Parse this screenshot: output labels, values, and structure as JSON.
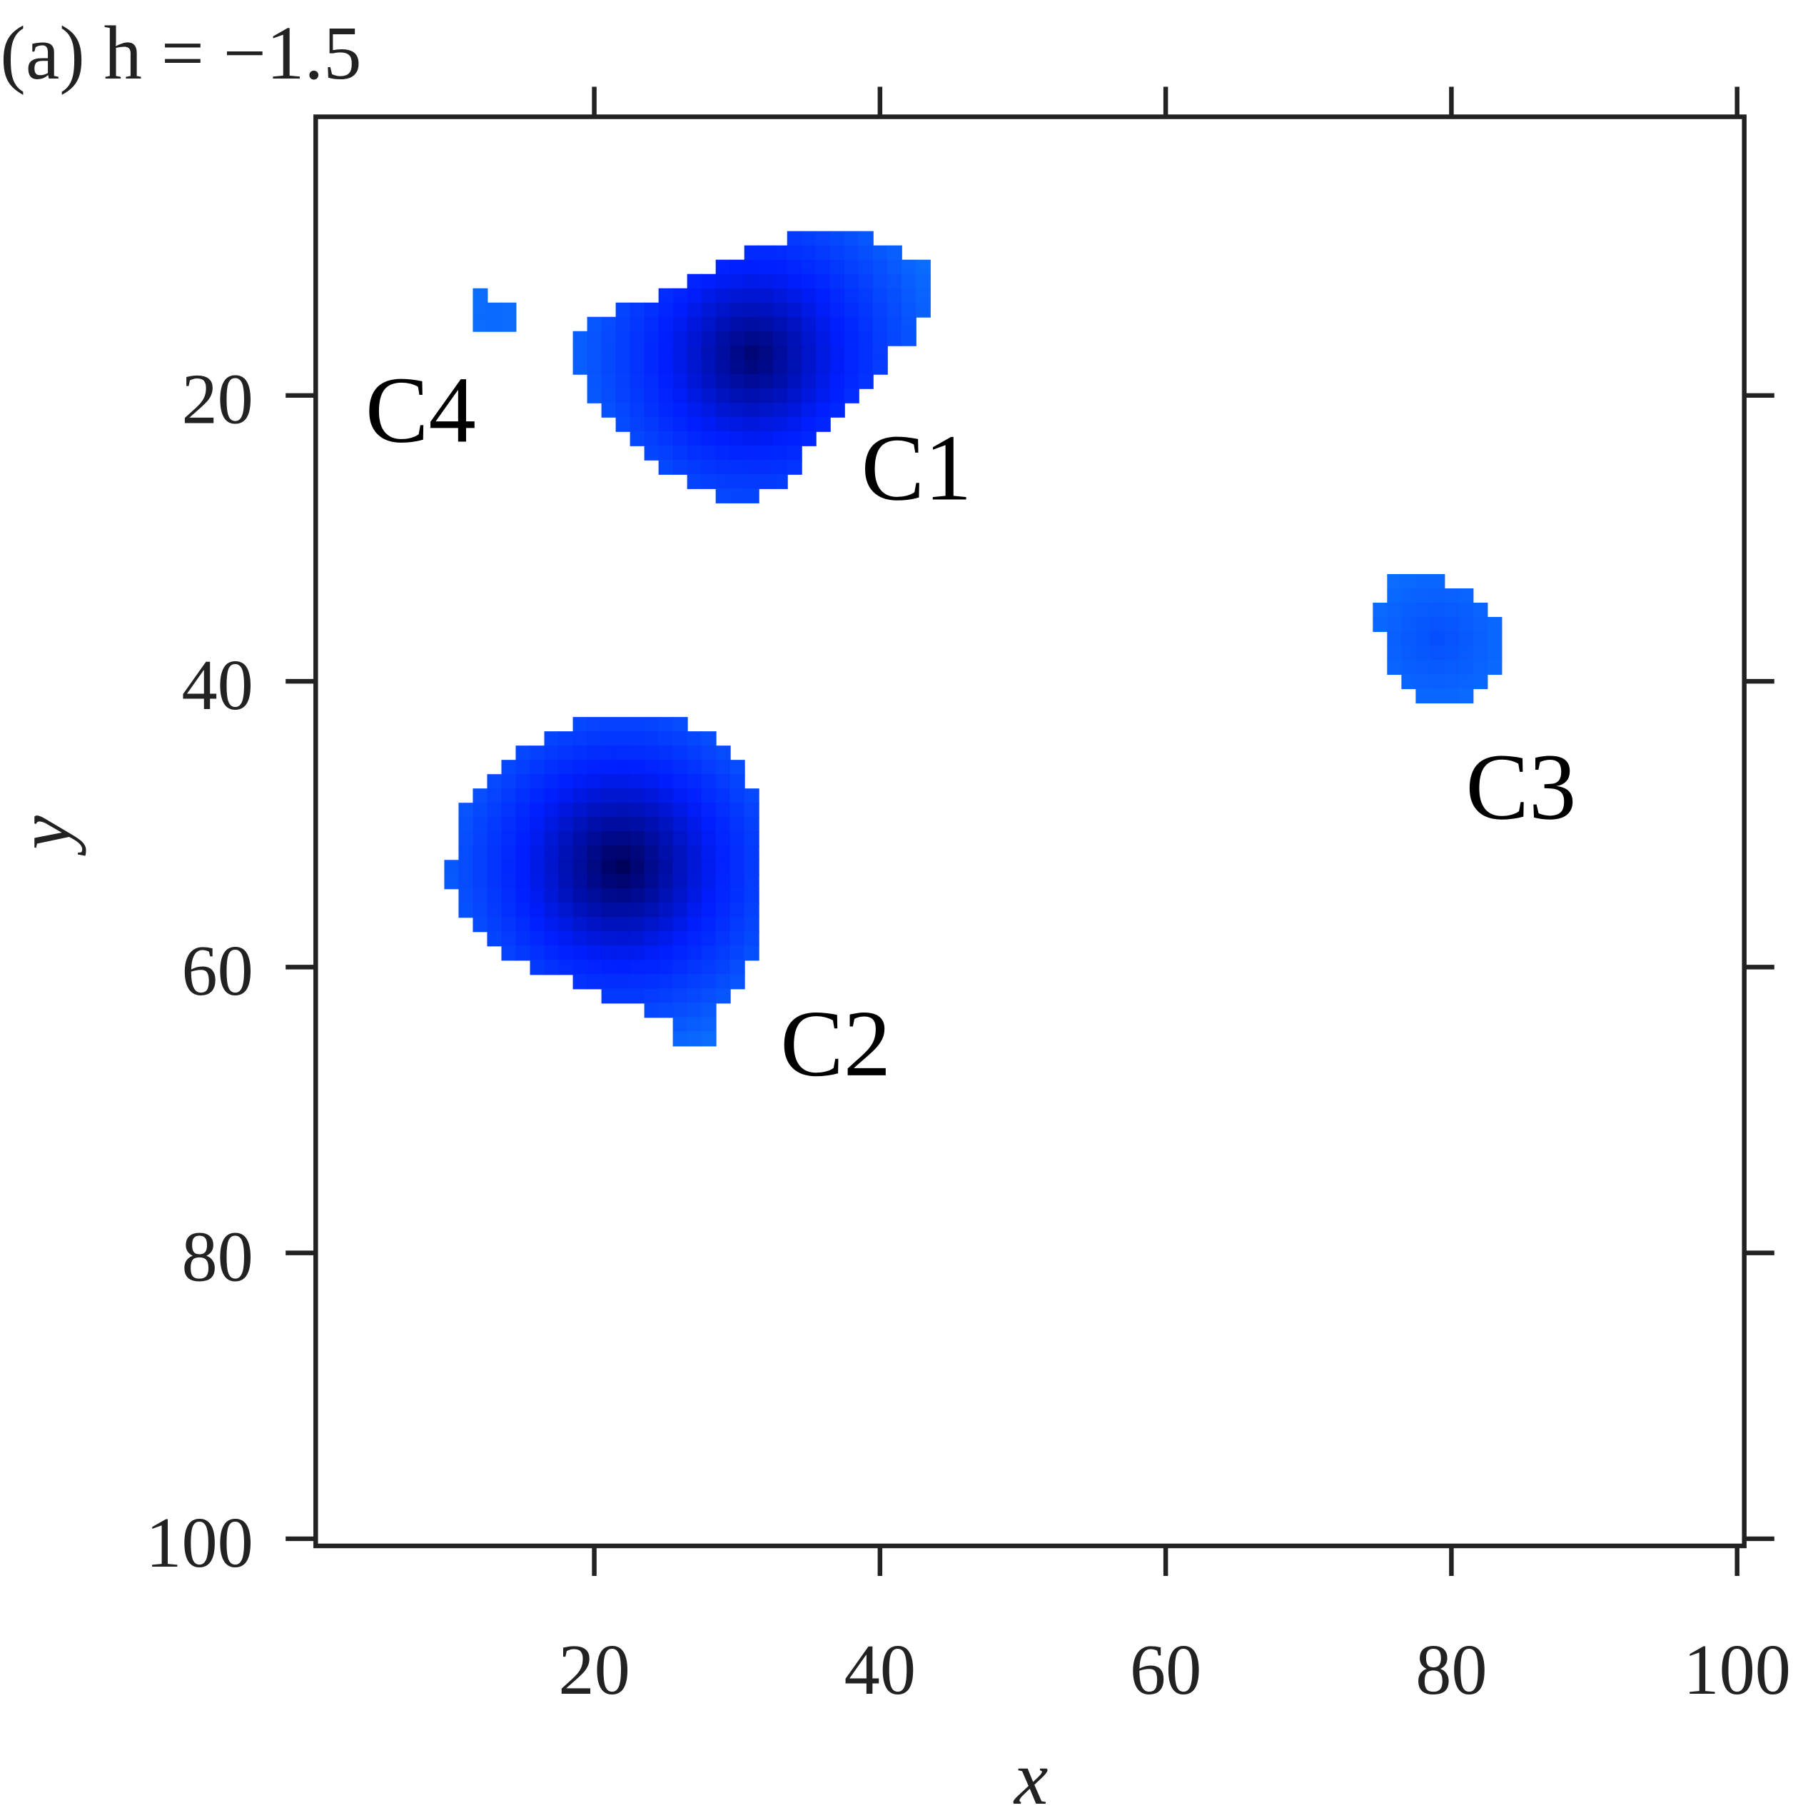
{
  "chart_data": {
    "type": "heatmap",
    "title": "(a) h = −1.5",
    "x_label": "x",
    "y_label": "y",
    "xlim": [
      0.5,
      100.5
    ],
    "ylim": [
      0.5,
      100.5
    ],
    "y_inverted": true,
    "xticks": [
      20,
      40,
      60,
      80,
      100
    ],
    "yticks": [
      20,
      40,
      60,
      80,
      100
    ],
    "clusters": [
      {
        "label": "C1",
        "rows": [
          [
            9,
            34,
            39
          ],
          [
            10,
            31,
            41
          ],
          [
            11,
            29,
            43
          ],
          [
            12,
            27,
            43
          ],
          [
            13,
            25,
            43
          ],
          [
            14,
            22,
            43
          ],
          [
            15,
            20,
            42
          ],
          [
            16,
            19,
            42
          ],
          [
            17,
            19,
            40
          ],
          [
            18,
            19,
            40
          ],
          [
            19,
            20,
            39
          ],
          [
            20,
            20,
            38
          ],
          [
            21,
            21,
            37
          ],
          [
            22,
            22,
            36
          ],
          [
            23,
            23,
            35
          ],
          [
            24,
            24,
            34
          ],
          [
            25,
            25,
            34
          ],
          [
            26,
            27,
            33
          ],
          [
            27,
            29,
            31
          ]
        ]
      },
      {
        "label": "C2",
        "rows": [
          [
            43,
            19,
            26
          ],
          [
            44,
            17,
            28
          ],
          [
            45,
            15,
            29
          ],
          [
            46,
            14,
            30
          ],
          [
            47,
            13,
            30
          ],
          [
            48,
            12,
            31
          ],
          [
            49,
            11,
            31
          ],
          [
            50,
            11,
            31
          ],
          [
            51,
            11,
            31
          ],
          [
            52,
            11,
            31
          ],
          [
            53,
            10,
            31
          ],
          [
            54,
            10,
            31
          ],
          [
            55,
            11,
            31
          ],
          [
            56,
            11,
            31
          ],
          [
            57,
            12,
            31
          ],
          [
            58,
            13,
            31
          ],
          [
            59,
            14,
            31
          ],
          [
            60,
            16,
            30
          ],
          [
            61,
            19,
            30
          ],
          [
            62,
            21,
            29
          ],
          [
            63,
            24,
            28
          ],
          [
            64,
            26,
            28
          ],
          [
            65,
            26,
            28
          ]
        ]
      },
      {
        "label": "C3",
        "rows": [
          [
            33,
            76,
            79
          ],
          [
            34,
            76,
            81
          ],
          [
            35,
            75,
            82
          ],
          [
            36,
            75,
            83
          ],
          [
            37,
            76,
            83
          ],
          [
            38,
            76,
            83
          ],
          [
            39,
            76,
            83
          ],
          [
            40,
            77,
            82
          ],
          [
            41,
            78,
            81
          ]
        ]
      },
      {
        "label": "C4",
        "rows": [
          [
            13,
            12,
            12
          ],
          [
            14,
            12,
            14
          ],
          [
            15,
            12,
            14
          ]
        ]
      }
    ]
  }
}
